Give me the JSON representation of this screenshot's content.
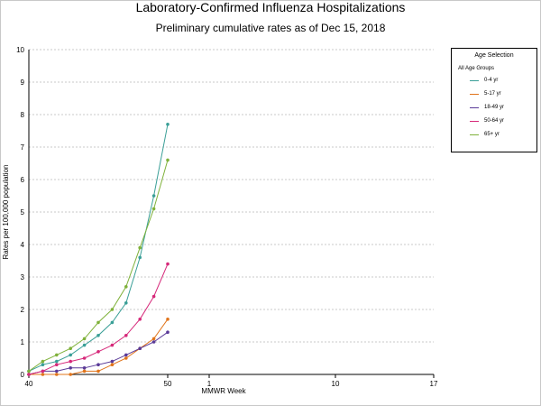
{
  "chart_data": {
    "type": "line",
    "title": "Laboratory-Confirmed Influenza Hospitalizations",
    "subtitle": "Preliminary cumulative rates as of Dec 15, 2018",
    "xlabel": "MMWR Week",
    "ylabel": "Rates per 100,000 population",
    "ylim": [
      0,
      10
    ],
    "y_ticks": [
      0,
      1,
      2,
      3,
      4,
      5,
      6,
      7,
      8,
      9,
      10
    ],
    "x_tick_labels": [
      "40",
      "50",
      "1",
      "10",
      "17"
    ],
    "grid": true,
    "legend": {
      "title": "Age Selection",
      "all_label": "All Age Groups",
      "placement": "right"
    },
    "x": [
      40,
      41,
      42,
      43,
      44,
      45,
      46,
      47,
      48,
      49,
      50
    ],
    "series": [
      {
        "name": "0-4 yr",
        "color": "#3a9f97",
        "values": [
          0.1,
          0.3,
          0.4,
          0.6,
          0.9,
          1.2,
          1.6,
          2.2,
          3.6,
          5.5,
          7.7
        ]
      },
      {
        "name": "5-17 yr",
        "color": "#e0741b",
        "values": [
          0.0,
          0.0,
          0.0,
          0.0,
          0.1,
          0.1,
          0.3,
          0.5,
          0.8,
          1.1,
          1.7
        ]
      },
      {
        "name": "18-49 yr",
        "color": "#5a3a98",
        "values": [
          0.0,
          0.1,
          0.1,
          0.2,
          0.2,
          0.3,
          0.4,
          0.6,
          0.8,
          1.0,
          1.3
        ]
      },
      {
        "name": "50-64 yr",
        "color": "#d6297a",
        "values": [
          0.0,
          0.1,
          0.3,
          0.4,
          0.5,
          0.7,
          0.9,
          1.2,
          1.7,
          2.4,
          3.4
        ]
      },
      {
        "name": "65+ yr",
        "color": "#7fb13a",
        "values": [
          0.1,
          0.4,
          0.6,
          0.8,
          1.1,
          1.6,
          2.0,
          2.7,
          3.9,
          5.1,
          6.6
        ]
      }
    ]
  }
}
